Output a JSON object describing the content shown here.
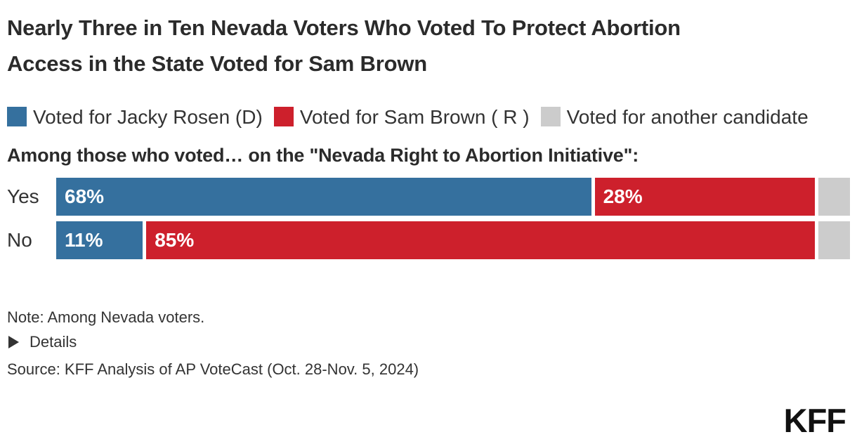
{
  "title": "Nearly Three in Ten Nevada Voters Who Voted To Protect Abortion Access in the State Voted for Sam Brown",
  "subtitle": "Among those who voted… on the \"Nevada Right to Abortion Initiative\":",
  "legend": {
    "items": [
      {
        "label": "Voted for Jacky Rosen (D)",
        "color": "#35709E"
      },
      {
        "label": "Voted for Sam Brown ( R )",
        "color": "#CD202C"
      },
      {
        "label": "Voted for another candidate",
        "color": "#CCCCCC"
      }
    ]
  },
  "chart_data": {
    "type": "bar",
    "orientation": "horizontal",
    "stacked": true,
    "categories": [
      "Yes",
      "No"
    ],
    "series": [
      {
        "name": "Voted for Jacky Rosen (D)",
        "color": "#35709E",
        "values": [
          68,
          11
        ],
        "labeled": true
      },
      {
        "name": "Voted for Sam Brown ( R )",
        "color": "#CD202C",
        "values": [
          28,
          85
        ],
        "labeled": true
      },
      {
        "name": "Voted for another candidate",
        "color": "#CCCCCC",
        "values": [
          4,
          4
        ],
        "labeled": false
      }
    ],
    "value_suffix": "%",
    "xlim": [
      0,
      100
    ],
    "grid": false,
    "legend_position": "top"
  },
  "note": "Note: Among Nevada voters.",
  "details_label": "Details",
  "source": "Source: KFF Analysis of AP VoteCast (Oct. 28-Nov. 5, 2024)",
  "logo_text": "KFF",
  "colors": {
    "rosen_blue": "#35709E",
    "brown_red": "#CD202C",
    "other_gray": "#CCCCCC",
    "text": "#333333"
  }
}
